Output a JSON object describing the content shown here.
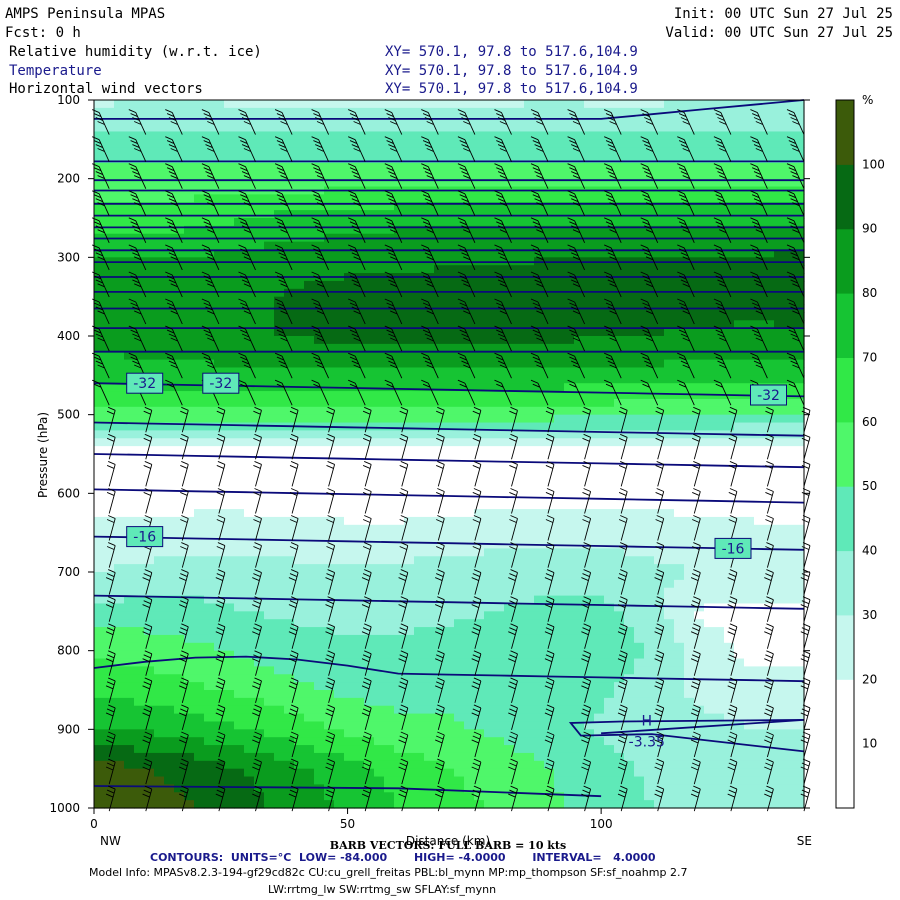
{
  "header": {
    "title": "AMPS Peninsula MPAS",
    "init": "Init: 00 UTC Sun 27 Jul 25",
    "fcst": "Fcst:    0 h",
    "valid": "Valid: 00 UTC Sun 27 Jul 25",
    "fields": [
      {
        "name": "Relative humidity (w.r.t. ice)",
        "xy": "XY= 570.1, 97.8 to 517.6,104.9"
      },
      {
        "name": "Temperature",
        "xy": "XY= 570.1, 97.8 to 517.6,104.9"
      },
      {
        "name": "Horizontal wind vectors",
        "xy": "XY= 570.1, 97.8 to 517.6,104.9"
      }
    ]
  },
  "chart_data": {
    "type": "heatmap",
    "title": "",
    "xlabel": "Distance (km)",
    "ylabel": "Pressure (hPa)",
    "xlim": [
      0,
      140
    ],
    "ylim": [
      1000,
      100
    ],
    "x_ticks": [
      "0",
      "50",
      "100"
    ],
    "x_tick_values": [
      0,
      50,
      100
    ],
    "y_ticks": [
      "100",
      "200",
      "300",
      "400",
      "500",
      "600",
      "700",
      "800",
      "900",
      "1000"
    ],
    "y_tick_values": [
      100,
      200,
      300,
      400,
      500,
      600,
      700,
      800,
      900,
      1000
    ],
    "endpoint_left": "NW",
    "endpoint_right": "SE",
    "colorbar": {
      "unit": "%",
      "levels": [
        0,
        10,
        20,
        30,
        40,
        50,
        60,
        70,
        80,
        90,
        100,
        110
      ],
      "tick_labels": [
        "10",
        "20",
        "30",
        "40",
        "50",
        "60",
        "70",
        "80",
        "90",
        "100"
      ],
      "tick_values": [
        10,
        20,
        30,
        40,
        50,
        60,
        70,
        80,
        90,
        100
      ],
      "colors": [
        "#ffffff",
        "#ffffff",
        "#c6f7ee",
        "#99f1dc",
        "#5fe9b8",
        "#4ff76a",
        "#31e847",
        "#16c433",
        "#0a9c1e",
        "#066a14",
        "#3c5b0a"
      ]
    },
    "rh_field": {
      "x": [
        0,
        10,
        20,
        30,
        40,
        50,
        60,
        70,
        80,
        90,
        100,
        110,
        120,
        130,
        140
      ],
      "p": [
        100,
        150,
        200,
        250,
        300,
        350,
        400,
        450,
        500,
        550,
        600,
        650,
        700,
        750,
        800,
        850,
        900,
        950,
        1000
      ],
      "values": [
        [
          28,
          29,
          29,
          28,
          28,
          27,
          28,
          28,
          28,
          29,
          28,
          28,
          30,
          30,
          30
        ],
        [
          44,
          44,
          44,
          44,
          45,
          44,
          44,
          44,
          44,
          44,
          45,
          44,
          44,
          44,
          44
        ],
        [
          54,
          54,
          54,
          54,
          54,
          54,
          54,
          54,
          54,
          54,
          54,
          54,
          54,
          54,
          54
        ],
        [
          63,
          64,
          66,
          70,
          73,
          75,
          77,
          78,
          78,
          78,
          78,
          78,
          78,
          78,
          78
        ],
        [
          80,
          80,
          80,
          83,
          85,
          87,
          88,
          89,
          89,
          90,
          90,
          90,
          91,
          91,
          92
        ],
        [
          83,
          85,
          88,
          88,
          92,
          93,
          93,
          93,
          93,
          93,
          93,
          93,
          93,
          92,
          93
        ],
        [
          82,
          85,
          86,
          89,
          91,
          92,
          92,
          92,
          92,
          92,
          91,
          90,
          89,
          89,
          89
        ],
        [
          76,
          77,
          77,
          77,
          77,
          78,
          78,
          78,
          78,
          77,
          77,
          76,
          75,
          75,
          75
        ],
        [
          54,
          54,
          54,
          54,
          54,
          54,
          54,
          54,
          54,
          54,
          53,
          52,
          52,
          50,
          50
        ],
        [
          15,
          15,
          15,
          15,
          15,
          15,
          15,
          15,
          15,
          15,
          15,
          15,
          15,
          15,
          15
        ],
        [
          15,
          15,
          15,
          15,
          15,
          15,
          15,
          15,
          15,
          15,
          15,
          15,
          15,
          15,
          15
        ],
        [
          22,
          24,
          25,
          25,
          23,
          22,
          22,
          24,
          26,
          28,
          28,
          26,
          24,
          22,
          22
        ],
        [
          30,
          32,
          34,
          33,
          33,
          33,
          33,
          34,
          35,
          34,
          34,
          32,
          30,
          30,
          30
        ],
        [
          42,
          45,
          43,
          40,
          38,
          37,
          37,
          38,
          40,
          44,
          43,
          34,
          18,
          16,
          18
        ],
        [
          58,
          55,
          52,
          48,
          44,
          42,
          42,
          44,
          44,
          48,
          50,
          38,
          26,
          16,
          16
        ],
        [
          68,
          66,
          62,
          58,
          52,
          48,
          46,
          46,
          44,
          46,
          42,
          34,
          28,
          26,
          24
        ],
        [
          80,
          78,
          75,
          70,
          64,
          58,
          54,
          52,
          48,
          44,
          38,
          34,
          32,
          30,
          30
        ],
        [
          104,
          101,
          96,
          90,
          82,
          74,
          66,
          60,
          55,
          50,
          44,
          38,
          34,
          32,
          32
        ],
        [
          106,
          104,
          100,
          94,
          86,
          78,
          70,
          64,
          58,
          52,
          46,
          40,
          36,
          34,
          34
        ]
      ]
    },
    "temperature_contours": {
      "units": "°C",
      "low": -84.0,
      "high": -4.0,
      "interval": 4.0,
      "labels": [
        {
          "text": "-32",
          "x": 10,
          "p": 460
        },
        {
          "text": "-32",
          "x": 25,
          "p": 460
        },
        {
          "text": "-32",
          "x": 133,
          "p": 475
        },
        {
          "text": "-16",
          "x": 10,
          "p": 655
        },
        {
          "text": "-16",
          "x": 126,
          "p": 670
        }
      ],
      "high_marker": {
        "text": "H",
        "value_text": "-3.35",
        "x": 109,
        "p": 895
      }
    },
    "legend": {
      "barb_note": "BARB VECTORS: FULL BARB = 10 kts",
      "contours_note": "CONTOURS:  UNITS=°C  LOW= -84.000       HIGH= -4.0000       INTERVAL=   4.0000",
      "model_info": "Model Info: MPASv8.2.3-194-gf29cd82c CU:cu_grell_freitas PBL:bl_mynn MP:mp_thompson SF:sf_noahmp 2.7",
      "model_info2": "LW:rrtmg_lw SW:rrtmg_sw SFLAY:sf_mynn"
    }
  }
}
